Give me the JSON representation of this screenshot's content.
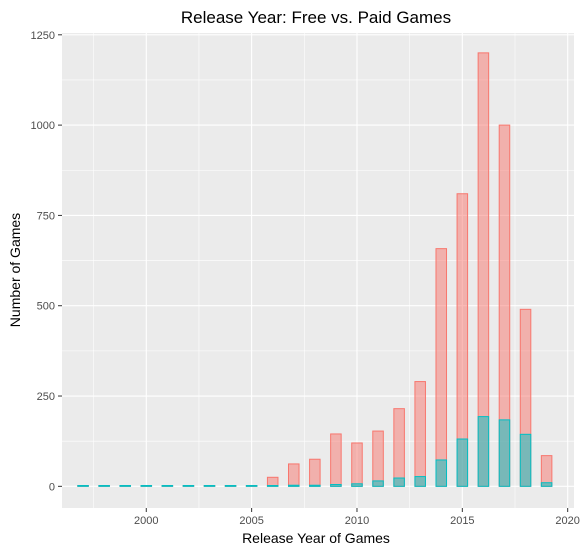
{
  "chart_data": {
    "type": "bar",
    "title": "Release Year: Free vs. Paid Games",
    "xlabel": "Release Year of Games",
    "ylabel": "Number of Games",
    "xlim": [
      1996,
      2020.3
    ],
    "ylim": [
      -60,
      1255
    ],
    "xticks": [
      2000,
      2005,
      2010,
      2015,
      2020
    ],
    "yticks": [
      0,
      250,
      500,
      750,
      1000,
      1250
    ],
    "grid": true,
    "legend": "none",
    "colors": {
      "panel_background": "#ebebeb",
      "paid_fill": "#f8766d",
      "free_fill": "#00bfc4"
    },
    "x": [
      1997,
      1998,
      1999,
      2000,
      2001,
      2002,
      2003,
      2004,
      2005,
      2006,
      2007,
      2008,
      2009,
      2010,
      2011,
      2012,
      2013,
      2014,
      2015,
      2016,
      2017,
      2018,
      2019
    ],
    "series": [
      {
        "key": "paid",
        "color": "#f8766d",
        "values": [
          0,
          0,
          0,
          0,
          0,
          0,
          0,
          2,
          2,
          25,
          62,
          75,
          145,
          120,
          153,
          215,
          290,
          658,
          810,
          1200,
          1000,
          490,
          85
        ]
      },
      {
        "key": "free",
        "color": "#00bfc4",
        "values": [
          0,
          0,
          0,
          0,
          0,
          0,
          0,
          0,
          0,
          2,
          3,
          3,
          5,
          7,
          15,
          23,
          27,
          73,
          131,
          193,
          184,
          144,
          10
        ]
      }
    ]
  }
}
